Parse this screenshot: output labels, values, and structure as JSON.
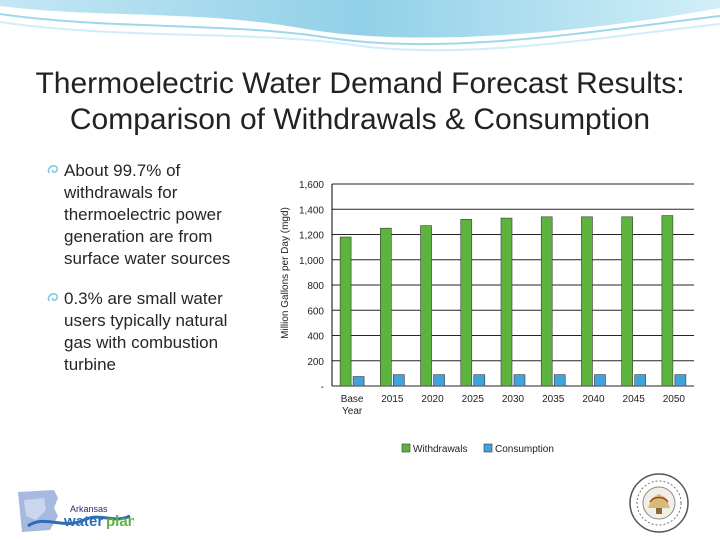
{
  "slide": {
    "title_line1": "Thermoelectric Water Demand Forecast Results:",
    "title_line2": "Comparison of Withdrawals & Consumption",
    "bullets": [
      "About 99.7% of withdrawals for thermoelectric power generation are from surface water sources",
      "0.3% are small water users typically natural gas with combustion turbine"
    ],
    "logo_text": "Arkansas water plan"
  },
  "colors": {
    "withdrawals": "#5cb43f",
    "consumption": "#3fa3dc",
    "wave": "#7ec8e3"
  },
  "chart_data": {
    "type": "bar",
    "categories": [
      "Base Year",
      "2015",
      "2020",
      "2025",
      "2030",
      "2035",
      "2040",
      "2045",
      "2050"
    ],
    "tick_labels": [
      "Base\nYear",
      "2015",
      "2020",
      "2025",
      "2030",
      "2035",
      "2040",
      "2045",
      "2050"
    ],
    "series": [
      {
        "name": "Withdrawals",
        "values": [
          1180,
          1250,
          1270,
          1320,
          1330,
          1340,
          1340,
          1340,
          1350
        ]
      },
      {
        "name": "Consumption",
        "values": [
          75,
          90,
          90,
          90,
          90,
          90,
          90,
          90,
          90
        ]
      }
    ],
    "title": "",
    "xlabel": "",
    "ylabel": "Million Gallons per Day (mgd)",
    "ylim": [
      0,
      1600
    ],
    "yticks": [
      0,
      200,
      400,
      600,
      800,
      1000,
      1200,
      1400,
      1600
    ],
    "ytick_labels": [
      "-",
      "200",
      "400",
      "600",
      "800",
      "1,000",
      "1,200",
      "1,400",
      "1,600"
    ],
    "grid": true,
    "legend": "bottom"
  }
}
